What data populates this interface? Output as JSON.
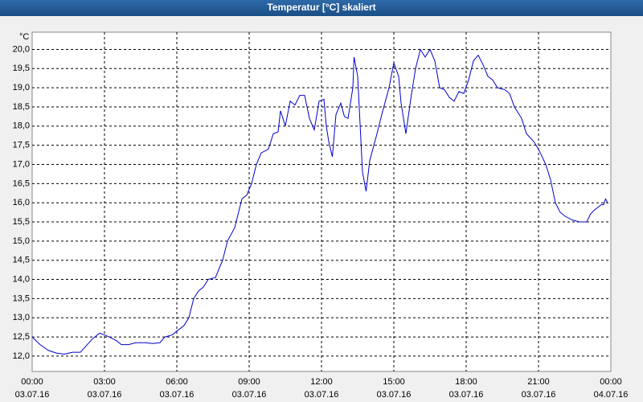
{
  "chart_data": {
    "type": "line",
    "title": "Temperatur [°C] skaliert",
    "y_label": "°C",
    "x": [
      0,
      0.33,
      0.67,
      1.0,
      1.33,
      1.67,
      2.0,
      2.5,
      2.8,
      3.2,
      3.5,
      3.7,
      4.0,
      4.3,
      4.7,
      5.0,
      5.3,
      5.5,
      5.8,
      6.0,
      6.3,
      6.5,
      6.7,
      6.9,
      7.1,
      7.3,
      7.6,
      7.9,
      8.1,
      8.4,
      8.7,
      8.9,
      9.1,
      9.3,
      9.5,
      9.8,
      10.0,
      10.2,
      10.3,
      10.5,
      10.7,
      10.9,
      11.1,
      11.3,
      11.5,
      11.7,
      11.9,
      12.1,
      12.2,
      12.3,
      12.45,
      12.6,
      12.8,
      12.95,
      13.1,
      13.3,
      13.35,
      13.5,
      13.7,
      13.85,
      14.0,
      14.3,
      14.5,
      14.8,
      15.0,
      15.2,
      15.3,
      15.5,
      15.7,
      15.9,
      16.1,
      16.3,
      16.5,
      16.7,
      16.9,
      17.1,
      17.3,
      17.5,
      17.7,
      17.9,
      18.1,
      18.3,
      18.5,
      18.7,
      18.9,
      19.1,
      19.3,
      19.6,
      19.8,
      20.0,
      20.3,
      20.5,
      20.8,
      21.0,
      21.3,
      21.5,
      21.7,
      21.9,
      22.1,
      22.4,
      22.7,
      23.0,
      23.15,
      23.3,
      23.5,
      23.6,
      23.7,
      23.78,
      23.87
    ],
    "values": [
      12.5,
      12.3,
      12.15,
      12.08,
      12.05,
      12.1,
      12.1,
      12.45,
      12.6,
      12.5,
      12.4,
      12.3,
      12.3,
      12.35,
      12.35,
      12.33,
      12.35,
      12.5,
      12.55,
      12.65,
      12.8,
      13.0,
      13.5,
      13.7,
      13.8,
      14.0,
      14.05,
      14.5,
      15.0,
      15.35,
      16.1,
      16.2,
      16.5,
      17.0,
      17.3,
      17.4,
      17.8,
      17.85,
      18.4,
      18.0,
      18.65,
      18.55,
      18.8,
      18.8,
      18.2,
      17.9,
      18.65,
      18.7,
      18.0,
      17.6,
      17.2,
      18.3,
      18.6,
      18.25,
      18.2,
      19.0,
      19.8,
      19.3,
      16.8,
      16.3,
      17.1,
      17.8,
      18.3,
      19.0,
      19.65,
      19.3,
      18.6,
      17.8,
      18.7,
      19.5,
      20.0,
      19.8,
      20.0,
      19.7,
      19.0,
      18.95,
      18.75,
      18.65,
      18.9,
      18.85,
      19.2,
      19.7,
      19.85,
      19.6,
      19.3,
      19.2,
      19.0,
      18.95,
      18.85,
      18.5,
      18.2,
      17.8,
      17.6,
      17.4,
      17.0,
      16.6,
      16.0,
      15.75,
      15.65,
      15.55,
      15.5,
      15.5,
      15.7,
      15.8,
      15.9,
      15.95,
      15.95,
      16.1,
      16.0
    ],
    "color": "#0000cc",
    "xlim": [
      0,
      24
    ],
    "xticks": [
      {
        "value": 0,
        "label": "00:00"
      },
      {
        "value": 3,
        "label": "03:00"
      },
      {
        "value": 6,
        "label": "06:00"
      },
      {
        "value": 9,
        "label": "09:00"
      },
      {
        "value": 12,
        "label": "12:00"
      },
      {
        "value": 15,
        "label": "15:00"
      },
      {
        "value": 18,
        "label": "18:00"
      },
      {
        "value": 21,
        "label": "21:00"
      },
      {
        "value": 24,
        "label": "00:00"
      }
    ],
    "xtick_dates": [
      "03.07.16",
      "03.07.16",
      "03.07.16",
      "03.07.16",
      "03.07.16",
      "03.07.16",
      "03.07.16",
      "03.07.16",
      "04.07.16"
    ],
    "ylim": [
      11.6,
      20.45
    ],
    "yticks": [
      {
        "value": 12,
        "label": "12,0"
      },
      {
        "value": 12.5,
        "label": "12,5"
      },
      {
        "value": 13,
        "label": "13,0"
      },
      {
        "value": 13.5,
        "label": "13,5"
      },
      {
        "value": 14,
        "label": "14,0"
      },
      {
        "value": 14.5,
        "label": "14,5"
      },
      {
        "value": 15,
        "label": "15,0"
      },
      {
        "value": 15.5,
        "label": "15,5"
      },
      {
        "value": 16,
        "label": "16,0"
      },
      {
        "value": 16.5,
        "label": "16,5"
      },
      {
        "value": 17,
        "label": "17,0"
      },
      {
        "value": 17.5,
        "label": "17,5"
      },
      {
        "value": 18,
        "label": "18,0"
      },
      {
        "value": 18.5,
        "label": "18,5"
      },
      {
        "value": 19,
        "label": "19,0"
      },
      {
        "value": 19.5,
        "label": "19,5"
      },
      {
        "value": 20,
        "label": "20,0"
      }
    ],
    "grid": true
  }
}
